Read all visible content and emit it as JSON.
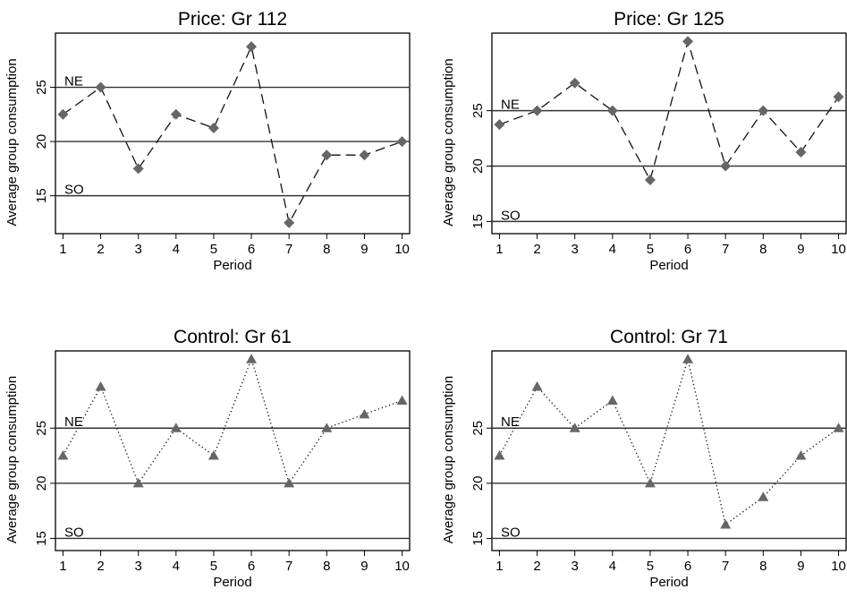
{
  "chart_data": [
    {
      "type": "line",
      "title": "Price: Gr 112",
      "xlabel": "Period",
      "ylabel": "Average group consumption",
      "x": [
        1,
        2,
        3,
        4,
        5,
        6,
        7,
        8,
        9,
        10
      ],
      "series": [
        {
          "values": [
            22.5,
            25,
            17.5,
            22.5,
            21.25,
            28.75,
            12.5,
            18.75,
            18.75,
            20
          ],
          "marker": "diamond",
          "line_style": "dashed"
        }
      ],
      "reference_lines": [
        {
          "label": "NE",
          "y": 25
        },
        {
          "label": "",
          "y": 20
        },
        {
          "label": "SO",
          "y": 15
        }
      ],
      "xticks": [
        "1",
        "2",
        "3",
        "4",
        "5",
        "6",
        "7",
        "8",
        "9",
        "10"
      ],
      "yticks": [
        "15",
        "20",
        "25"
      ],
      "xlim": [
        0.8,
        10.2
      ],
      "ylim": [
        11.5,
        30
      ],
      "grid": false
    },
    {
      "type": "line",
      "title": "Price: Gr 125",
      "xlabel": "Period",
      "ylabel": "Average group consumption",
      "x": [
        1,
        2,
        3,
        4,
        5,
        6,
        7,
        8,
        9,
        10
      ],
      "series": [
        {
          "values": [
            23.75,
            25,
            27.5,
            25,
            18.75,
            31.25,
            20,
            25,
            21.25,
            26.25
          ],
          "marker": "diamond",
          "line_style": "dashed"
        }
      ],
      "reference_lines": [
        {
          "label": "NE",
          "y": 25
        },
        {
          "label": "",
          "y": 20
        },
        {
          "label": "SO",
          "y": 15
        }
      ],
      "xticks": [
        "1",
        "2",
        "3",
        "4",
        "5",
        "6",
        "7",
        "8",
        "9",
        "10"
      ],
      "yticks": [
        "15",
        "20",
        "25"
      ],
      "xlim": [
        0.8,
        10.2
      ],
      "ylim": [
        13.9,
        32
      ],
      "grid": false
    },
    {
      "type": "line",
      "title": "Control: Gr 61",
      "xlabel": "Period",
      "ylabel": "Average group consumption",
      "x": [
        1,
        2,
        3,
        4,
        5,
        6,
        7,
        8,
        9,
        10
      ],
      "series": [
        {
          "values": [
            22.5,
            28.75,
            20,
            25,
            22.5,
            31.25,
            20,
            25,
            26.25,
            27.5
          ],
          "marker": "triangle",
          "line_style": "dotted"
        }
      ],
      "reference_lines": [
        {
          "label": "NE",
          "y": 25
        },
        {
          "label": "",
          "y": 20
        },
        {
          "label": "SO",
          "y": 15
        }
      ],
      "xticks": [
        "1",
        "2",
        "3",
        "4",
        "5",
        "6",
        "7",
        "8",
        "9",
        "10"
      ],
      "yticks": [
        "15",
        "20",
        "25"
      ],
      "xlim": [
        0.8,
        10.2
      ],
      "ylim": [
        13.9,
        32
      ],
      "grid": false
    },
    {
      "type": "line",
      "title": "Control: Gr 71",
      "xlabel": "Period",
      "ylabel": "Average group consumption",
      "x": [
        1,
        2,
        3,
        4,
        5,
        6,
        7,
        8,
        9,
        10
      ],
      "series": [
        {
          "values": [
            22.5,
            28.75,
            25,
            27.5,
            20,
            31.25,
            16.25,
            18.75,
            22.5,
            25
          ],
          "marker": "triangle",
          "line_style": "dotted"
        }
      ],
      "reference_lines": [
        {
          "label": "NE",
          "y": 25
        },
        {
          "label": "",
          "y": 20
        },
        {
          "label": "SO",
          "y": 15
        }
      ],
      "xticks": [
        "1",
        "2",
        "3",
        "4",
        "5",
        "6",
        "7",
        "8",
        "9",
        "10"
      ],
      "yticks": [
        "15",
        "20",
        "25"
      ],
      "xlim": [
        0.8,
        10.2
      ],
      "ylim": [
        13.9,
        32
      ],
      "grid": false
    }
  ],
  "colors": {
    "marker": "#666666",
    "series_line": "#111111",
    "reference_line": "#333333",
    "frame": "#000000",
    "background": "#ffffff"
  }
}
